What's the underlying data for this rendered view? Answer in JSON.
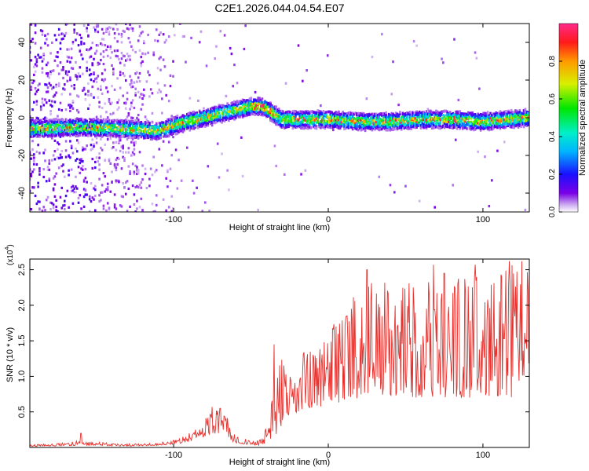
{
  "figure_title": "C2E1.2026.044.04.54.E07",
  "colors": {
    "line": "#e8302c",
    "axis": "#000000",
    "background": "#ffffff"
  },
  "chart_data": [
    {
      "type": "heatmap",
      "title": "C2E1.2026.044.04.54.E07",
      "xlabel": "Height of straight line (km)",
      "ylabel": "Frequency (Hz)",
      "xlim": [
        -193,
        130
      ],
      "ylim": [
        -50,
        50
      ],
      "x_ticks": [
        "-100",
        "0",
        "100"
      ],
      "x_tick_values": [
        -100,
        0,
        100
      ],
      "y_ticks": [
        "40",
        "20",
        "0",
        "-20",
        "-40"
      ],
      "y_tick_values": [
        40,
        20,
        0,
        -20,
        -40
      ],
      "colorbar": {
        "label": "Normalized spectral amplitude",
        "range": [
          0,
          1
        ],
        "ticks": [
          "0.0",
          "0.2",
          "0.4",
          "0.6",
          "0.8"
        ],
        "tick_values": [
          0.0,
          0.2,
          0.4,
          0.6,
          0.8
        ],
        "colormap": "rainbow"
      },
      "signal_ridge": {
        "x": [
          -193,
          -160,
          -130,
          -110,
          -95,
          -80,
          -65,
          -50,
          -42,
          -30,
          -15,
          0,
          20,
          40,
          60,
          80,
          100,
          115,
          130
        ],
        "frequency": [
          -6,
          -5,
          -6,
          -7,
          -3,
          0,
          3,
          6,
          6,
          -1,
          -1,
          -1,
          -2,
          -2,
          -1,
          -1,
          -2,
          -1,
          0
        ]
      }
    },
    {
      "type": "line",
      "xlabel": "Height of straight line (km)",
      "ylabel": "SNR (10 * v/v)",
      "y_multiplier": "(x10",
      "y_multiplier_exp": "4",
      "y_multiplier_close": ")",
      "xlim": [
        -193,
        130
      ],
      "ylim": [
        0,
        2.65
      ],
      "x_ticks": [
        "-100",
        "0",
        "100"
      ],
      "x_tick_values": [
        -100,
        0,
        100
      ],
      "y_ticks": [
        "2.5",
        "2.0",
        "1.5",
        "1.0",
        "0.5"
      ],
      "y_tick_values": [
        2.5,
        2.0,
        1.5,
        1.0,
        0.5
      ],
      "series": [
        {
          "name": "SNR",
          "envelope_x": [
            -193,
            -175,
            -160,
            -150,
            -140,
            -120,
            -100,
            -90,
            -80,
            -75,
            -70,
            -65,
            -60,
            -45,
            -40,
            -35,
            -30,
            -25,
            -20,
            -10,
            0,
            10,
            20,
            30,
            50,
            70,
            90,
            110,
            130
          ],
          "envelope_low": [
            0.01,
            0.02,
            0.03,
            0.03,
            0.02,
            0.02,
            0.04,
            0.08,
            0.15,
            0.2,
            0.15,
            0.1,
            0.06,
            0.03,
            0.05,
            0.15,
            0.3,
            0.45,
            0.5,
            0.55,
            0.6,
            0.65,
            0.7,
            0.7,
            0.7,
            0.7,
            0.7,
            0.7,
            0.7
          ],
          "envelope_high": [
            0.04,
            0.06,
            0.1,
            0.08,
            0.06,
            0.05,
            0.1,
            0.2,
            0.4,
            0.55,
            0.5,
            0.45,
            0.15,
            0.1,
            0.3,
            0.8,
            1.45,
            1.0,
            1.3,
            1.4,
            1.7,
            1.85,
            2.5,
            2.3,
            2.4,
            2.55,
            2.45,
            2.55,
            2.6
          ],
          "peaks_x": [
            -160,
            -75,
            -70,
            -35,
            5,
            12,
            25,
            55,
            68,
            75,
            95,
            112,
            117,
            125
          ],
          "peaks_y": [
            0.2,
            0.57,
            0.55,
            1.45,
            1.7,
            1.85,
            2.5,
            2.25,
            2.57,
            2.45,
            2.57,
            2.4,
            2.62,
            2.62
          ]
        }
      ]
    }
  ]
}
